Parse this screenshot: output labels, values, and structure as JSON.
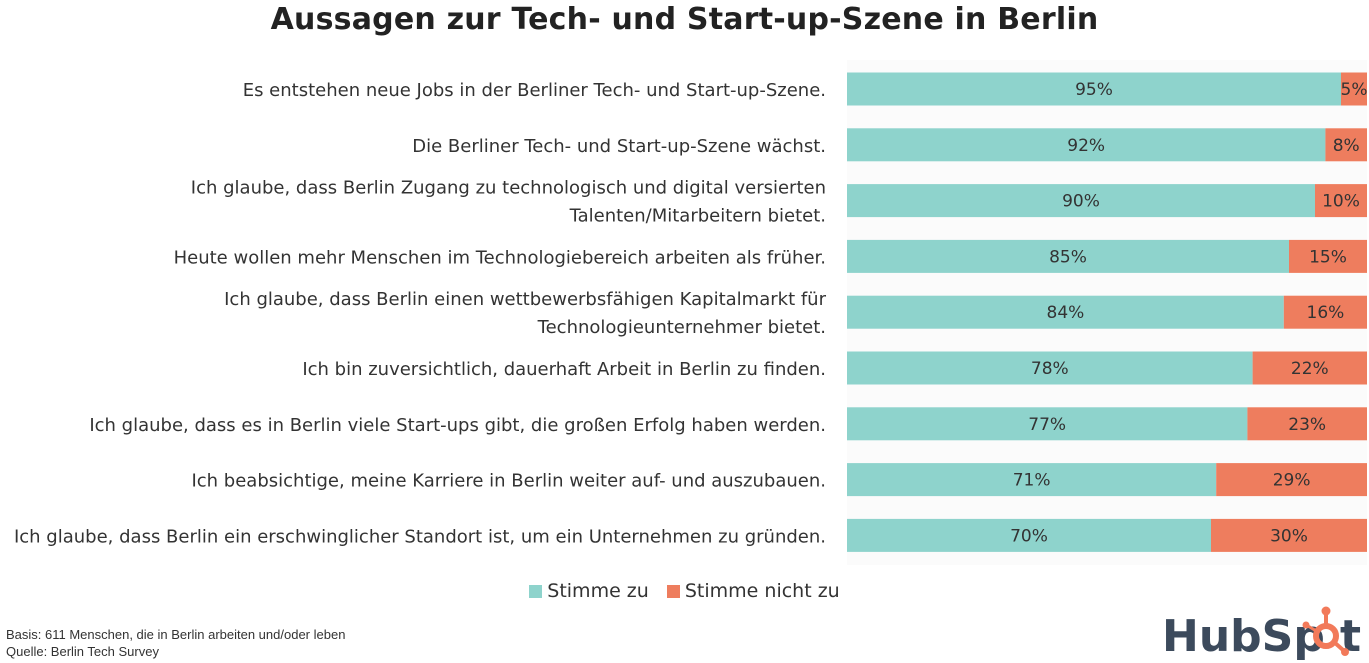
{
  "colors": {
    "agree": "#8ED3CC",
    "disagree": "#EE7D5E",
    "text": "#333333",
    "logo_text": "#3C4A5C",
    "logo_accent": "#F27A5A"
  },
  "chart_data": {
    "type": "bar",
    "orientation": "horizontal",
    "stacked": true,
    "title": "Aussagen zur Tech- und Start-up-Szene in Berlin",
    "xlim": [
      0,
      100
    ],
    "grid": false,
    "legend_position": "bottom",
    "categories": [
      [
        "Es entstehen neue Jobs in der Berliner Tech- und Start-up-Szene."
      ],
      [
        "Die Berliner Tech- und Start-up-Szene wächst."
      ],
      [
        "Ich glaube, dass Berlin Zugang zu technologisch und digital versierten",
        "Talenten/Mitarbeitern bietet."
      ],
      [
        "Heute wollen mehr Menschen im Technologiebereich arbeiten als früher."
      ],
      [
        "Ich glaube, dass Berlin einen wettbewerbsfähigen Kapitalmarkt für",
        "Technologieunternehmer bietet."
      ],
      [
        "Ich bin zuversichtlich, dauerhaft Arbeit in Berlin zu finden."
      ],
      [
        "Ich glaube, dass es in Berlin viele Start-ups gibt, die großen Erfolg haben werden."
      ],
      [
        "Ich beabsichtige, meine Karriere in Berlin weiter auf- und auszubauen."
      ],
      [
        "Ich glaube, dass Berlin ein erschwinglicher Standort ist, um ein Unternehmen zu gründen."
      ]
    ],
    "series": [
      {
        "name": "Stimme zu",
        "color": "#8ED3CC",
        "values": [
          95,
          92,
          90,
          85,
          84,
          78,
          77,
          71,
          70
        ],
        "labels": [
          "95%",
          "92%",
          "90%",
          "85%",
          "84%",
          "78%",
          "77%",
          "71%",
          "70%"
        ]
      },
      {
        "name": "Stimme nicht zu",
        "color": "#EE7D5E",
        "values": [
          5,
          8,
          10,
          15,
          16,
          22,
          23,
          29,
          30
        ],
        "labels": [
          "5%",
          "8%",
          "10%",
          "15%",
          "16%",
          "22%",
          "23%",
          "29%",
          "30%"
        ]
      }
    ]
  },
  "legend": {
    "agree": "Stimme zu",
    "disagree": "Stimme nicht zu"
  },
  "footnote": {
    "basis": "Basis: 611 Menschen, die in Berlin arbeiten und/oder leben",
    "source": "Quelle: Berlin Tech Survey"
  },
  "logo": {
    "text": "HubSpot",
    "icon": "hubspot-sprocket-icon"
  }
}
